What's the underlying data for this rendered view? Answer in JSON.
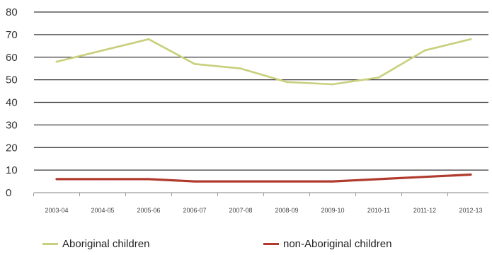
{
  "chart_data": {
    "type": "line",
    "categories": [
      "2003-04",
      "2004-05",
      "2005-06",
      "2006-07",
      "2007-08",
      "2008-09",
      "2009-10",
      "2010-11",
      "2011-12",
      "2012-13"
    ],
    "series": [
      {
        "name": "Aboriginal children",
        "color": "#c9cf7c",
        "values": [
          58,
          63,
          68,
          57,
          55,
          49,
          48,
          51,
          63,
          68
        ]
      },
      {
        "name": "non-Aboriginal children",
        "color": "#b03a2e",
        "values": [
          6,
          6,
          6,
          5,
          5,
          5,
          5,
          6,
          7,
          8
        ]
      }
    ],
    "y_ticks": [
      0,
      10,
      20,
      30,
      40,
      50,
      60,
      70,
      80
    ],
    "ylim": [
      0,
      80
    ],
    "grid": true,
    "legend_position": "bottom"
  }
}
